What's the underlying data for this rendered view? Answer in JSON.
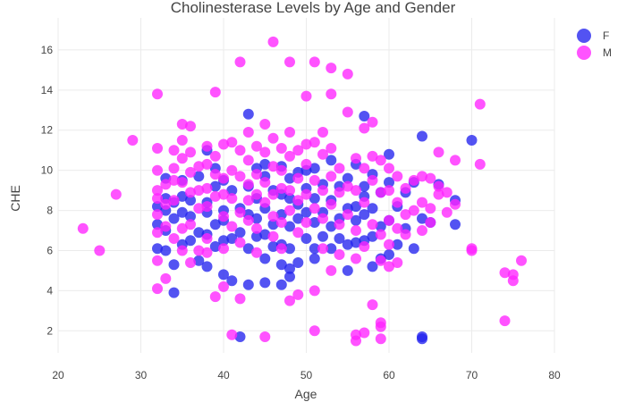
{
  "chart_data": {
    "type": "scatter",
    "title": "Cholinesterase Levels by Age and Gender",
    "xlabel": "Age",
    "ylabel": "CHE",
    "xlim": [
      20,
      80
    ],
    "ylim": [
      0.9,
      17.6
    ],
    "xticks": [
      "20",
      "30",
      "40",
      "50",
      "60",
      "70",
      "80"
    ],
    "yticks": [
      "2",
      "4",
      "6",
      "8",
      "10",
      "12",
      "14",
      "16"
    ],
    "grid": true,
    "legend": "top-right",
    "series": [
      {
        "name": "F",
        "color": "#2222ee",
        "points": [
          [
            32,
            8.2
          ],
          [
            32,
            6.1
          ],
          [
            32,
            7.3
          ],
          [
            33,
            6.0
          ],
          [
            33,
            7.0
          ],
          [
            33,
            8.0
          ],
          [
            33,
            8.6
          ],
          [
            33,
            9.6
          ],
          [
            34,
            3.9
          ],
          [
            34,
            5.3
          ],
          [
            34,
            7.6
          ],
          [
            34,
            8.4
          ],
          [
            35,
            6.3
          ],
          [
            35,
            7.9
          ],
          [
            35,
            8.7
          ],
          [
            35,
            9.5
          ],
          [
            36,
            6.5
          ],
          [
            36,
            7.7
          ],
          [
            36,
            8.5
          ],
          [
            37,
            5.5
          ],
          [
            37,
            6.9
          ],
          [
            37,
            9.7
          ],
          [
            38,
            5.2
          ],
          [
            38,
            6.8
          ],
          [
            38,
            7.9
          ],
          [
            38,
            8.4
          ],
          [
            38,
            11.0
          ],
          [
            39,
            6.2
          ],
          [
            39,
            7.3
          ],
          [
            39,
            9.2
          ],
          [
            39,
            10.1
          ],
          [
            40,
            4.8
          ],
          [
            40,
            6.5
          ],
          [
            40,
            7.5
          ],
          [
            40,
            8.0
          ],
          [
            40,
            9.5
          ],
          [
            41,
            4.5
          ],
          [
            41,
            6.6
          ],
          [
            41,
            9.0
          ],
          [
            42,
            1.7
          ],
          [
            42,
            8.1
          ],
          [
            42,
            6.9
          ],
          [
            43,
            12.8
          ],
          [
            43,
            4.3
          ],
          [
            43,
            6.1
          ],
          [
            43,
            7.8
          ],
          [
            43,
            9.2
          ],
          [
            44,
            6.7
          ],
          [
            44,
            7.6
          ],
          [
            44,
            8.6
          ],
          [
            44,
            10.1
          ],
          [
            45,
            4.4
          ],
          [
            45,
            5.6
          ],
          [
            45,
            6.8
          ],
          [
            45,
            8.1
          ],
          [
            45,
            9.7
          ],
          [
            45,
            10.3
          ],
          [
            46,
            6.2
          ],
          [
            46,
            7.3
          ],
          [
            46,
            9.0
          ],
          [
            47,
            4.3
          ],
          [
            47,
            5.3
          ],
          [
            47,
            6.3
          ],
          [
            47,
            7.8
          ],
          [
            47,
            8.8
          ],
          [
            47,
            10.2
          ],
          [
            48,
            4.7
          ],
          [
            48,
            5.1
          ],
          [
            48,
            6.1
          ],
          [
            48,
            7.2
          ],
          [
            48,
            8.6
          ],
          [
            48,
            9.6
          ],
          [
            49,
            5.4
          ],
          [
            49,
            7.6
          ],
          [
            49,
            8.3
          ],
          [
            49,
            9.9
          ],
          [
            50,
            6.6
          ],
          [
            50,
            7.9
          ],
          [
            50,
            9.1
          ],
          [
            50,
            10.0
          ],
          [
            51,
            5.6
          ],
          [
            51,
            6.1
          ],
          [
            51,
            7.4
          ],
          [
            51,
            8.6
          ],
          [
            51,
            10.1
          ],
          [
            52,
            6.7
          ],
          [
            52,
            7.9
          ],
          [
            52,
            9.3
          ],
          [
            53,
            6.1
          ],
          [
            53,
            7.2
          ],
          [
            53,
            8.5
          ],
          [
            53,
            10.5
          ],
          [
            54,
            6.6
          ],
          [
            54,
            7.6
          ],
          [
            54,
            9.2
          ],
          [
            55,
            5.0
          ],
          [
            55,
            6.3
          ],
          [
            55,
            8.1
          ],
          [
            55,
            9.6
          ],
          [
            56,
            6.4
          ],
          [
            56,
            7.5
          ],
          [
            56,
            8.2
          ],
          [
            56,
            10.3
          ],
          [
            57,
            12.7
          ],
          [
            57,
            6.5
          ],
          [
            57,
            7.8
          ],
          [
            57,
            8.7
          ],
          [
            57,
            9.2
          ],
          [
            58,
            5.2
          ],
          [
            58,
            6.7
          ],
          [
            58,
            8.1
          ],
          [
            58,
            9.8
          ],
          [
            59,
            5.6
          ],
          [
            59,
            7.2
          ],
          [
            59,
            8.9
          ],
          [
            60,
            10.8
          ],
          [
            60,
            5.8
          ],
          [
            60,
            7.5
          ],
          [
            60,
            9.4
          ],
          [
            61,
            6.3
          ],
          [
            61,
            8.2
          ],
          [
            62,
            7.1
          ],
          [
            62,
            8.9
          ],
          [
            63,
            6.1
          ],
          [
            63,
            9.4
          ],
          [
            64,
            11.7
          ],
          [
            64,
            1.6
          ],
          [
            64,
            1.7
          ],
          [
            64,
            7.6
          ],
          [
            65,
            7.4
          ],
          [
            66,
            9.3
          ],
          [
            68,
            7.3
          ],
          [
            68,
            8.5
          ],
          [
            70,
            11.5
          ]
        ]
      },
      {
        "name": "M",
        "color": "#ff22ff",
        "points": [
          [
            23,
            7.1
          ],
          [
            25,
            6.0
          ],
          [
            27,
            8.8
          ],
          [
            29,
            11.5
          ],
          [
            32,
            13.8
          ],
          [
            32,
            11.1
          ],
          [
            32,
            10.0
          ],
          [
            32,
            9.0
          ],
          [
            32,
            8.6
          ],
          [
            32,
            7.8
          ],
          [
            32,
            6.9
          ],
          [
            32,
            5.5
          ],
          [
            32,
            4.1
          ],
          [
            33,
            9.3
          ],
          [
            33,
            8.3
          ],
          [
            33,
            7.2
          ],
          [
            33,
            4.6
          ],
          [
            34,
            11.0
          ],
          [
            34,
            10.1
          ],
          [
            34,
            9.5
          ],
          [
            34,
            8.5
          ],
          [
            34,
            6.6
          ],
          [
            35,
            12.3
          ],
          [
            35,
            11.5
          ],
          [
            35,
            10.6
          ],
          [
            35,
            9.4
          ],
          [
            35,
            7.1
          ],
          [
            35,
            6.0
          ],
          [
            36,
            12.2
          ],
          [
            36,
            10.9
          ],
          [
            36,
            9.9
          ],
          [
            36,
            8.9
          ],
          [
            36,
            7.3
          ],
          [
            36,
            5.4
          ],
          [
            37,
            10.2
          ],
          [
            37,
            9.0
          ],
          [
            37,
            8.1
          ],
          [
            37,
            6.0
          ],
          [
            38,
            11.2
          ],
          [
            38,
            10.3
          ],
          [
            38,
            9.1
          ],
          [
            38,
            8.2
          ],
          [
            38,
            6.6
          ],
          [
            38,
            5.9
          ],
          [
            39,
            13.9
          ],
          [
            39,
            10.7
          ],
          [
            39,
            9.8
          ],
          [
            39,
            8.7
          ],
          [
            39,
            3.7
          ],
          [
            40,
            11.3
          ],
          [
            40,
            9.6
          ],
          [
            40,
            8.8
          ],
          [
            40,
            7.7
          ],
          [
            40,
            6.1
          ],
          [
            40,
            4.2
          ],
          [
            41,
            11.4
          ],
          [
            41,
            10.0
          ],
          [
            41,
            8.6
          ],
          [
            41,
            7.2
          ],
          [
            41,
            1.8
          ],
          [
            42,
            15.4
          ],
          [
            42,
            11.0
          ],
          [
            42,
            9.7
          ],
          [
            42,
            7.9
          ],
          [
            42,
            6.4
          ],
          [
            42,
            3.6
          ],
          [
            43,
            11.9
          ],
          [
            43,
            10.5
          ],
          [
            43,
            9.3
          ],
          [
            43,
            8.5
          ],
          [
            43,
            7.5
          ],
          [
            44,
            11.2
          ],
          [
            44,
            9.8
          ],
          [
            44,
            8.8
          ],
          [
            44,
            7.1
          ],
          [
            44,
            5.9
          ],
          [
            45,
            12.3
          ],
          [
            45,
            10.9
          ],
          [
            45,
            9.4
          ],
          [
            45,
            8.4
          ],
          [
            45,
            1.7
          ],
          [
            46,
            16.4
          ],
          [
            46,
            11.6
          ],
          [
            46,
            10.2
          ],
          [
            46,
            8.8
          ],
          [
            46,
            7.7
          ],
          [
            46,
            6.7
          ],
          [
            47,
            11.1
          ],
          [
            47,
            10.0
          ],
          [
            47,
            9.1
          ],
          [
            47,
            7.4
          ],
          [
            47,
            6.1
          ],
          [
            48,
            15.4
          ],
          [
            48,
            11.9
          ],
          [
            48,
            10.7
          ],
          [
            48,
            9.0
          ],
          [
            48,
            8.0
          ],
          [
            48,
            3.5
          ],
          [
            49,
            11.0
          ],
          [
            49,
            9.6
          ],
          [
            49,
            8.5
          ],
          [
            49,
            6.9
          ],
          [
            49,
            3.8
          ],
          [
            50,
            13.7
          ],
          [
            50,
            11.3
          ],
          [
            50,
            10.3
          ],
          [
            50,
            8.8
          ],
          [
            50,
            7.4
          ],
          [
            51,
            15.4
          ],
          [
            51,
            11.4
          ],
          [
            51,
            9.5
          ],
          [
            51,
            8.1
          ],
          [
            51,
            4.0
          ],
          [
            51,
            2.0
          ],
          [
            52,
            11.9
          ],
          [
            52,
            10.8
          ],
          [
            52,
            9.0
          ],
          [
            52,
            7.6
          ],
          [
            52,
            6.1
          ],
          [
            53,
            15.1
          ],
          [
            53,
            13.8
          ],
          [
            53,
            11.1
          ],
          [
            53,
            9.7
          ],
          [
            53,
            8.3
          ],
          [
            53,
            5.0
          ],
          [
            54,
            10.1
          ],
          [
            54,
            8.9
          ],
          [
            54,
            7.3
          ],
          [
            54,
            5.8
          ],
          [
            55,
            14.8
          ],
          [
            55,
            12.9
          ],
          [
            55,
            9.2
          ],
          [
            55,
            7.8
          ],
          [
            56,
            10.6
          ],
          [
            56,
            9.0
          ],
          [
            56,
            7.0
          ],
          [
            56,
            5.6
          ],
          [
            56,
            1.8
          ],
          [
            56,
            1.5
          ],
          [
            57,
            12.1
          ],
          [
            57,
            10.1
          ],
          [
            57,
            8.4
          ],
          [
            57,
            6.2
          ],
          [
            57,
            1.9
          ],
          [
            58,
            12.4
          ],
          [
            58,
            10.7
          ],
          [
            58,
            9.5
          ],
          [
            58,
            7.3
          ],
          [
            58,
            3.3
          ],
          [
            59,
            10.5
          ],
          [
            59,
            8.9
          ],
          [
            59,
            6.8
          ],
          [
            59,
            5.5
          ],
          [
            59,
            2.4
          ],
          [
            59,
            2.2
          ],
          [
            59,
            1.6
          ],
          [
            60,
            10.1
          ],
          [
            60,
            9.0
          ],
          [
            60,
            7.5
          ],
          [
            60,
            6.3
          ],
          [
            60,
            5.2
          ],
          [
            61,
            9.7
          ],
          [
            61,
            8.4
          ],
          [
            61,
            7.1
          ],
          [
            61,
            5.4
          ],
          [
            62,
            9.1
          ],
          [
            62,
            7.8
          ],
          [
            62,
            6.8
          ],
          [
            63,
            9.5
          ],
          [
            63,
            8.0
          ],
          [
            64,
            9.7
          ],
          [
            64,
            8.4
          ],
          [
            64,
            7.0
          ],
          [
            65,
            9.6
          ],
          [
            65,
            8.1
          ],
          [
            65,
            7.4
          ],
          [
            66,
            10.9
          ],
          [
            66,
            9.2
          ],
          [
            66,
            8.8
          ],
          [
            67,
            8.9
          ],
          [
            67,
            7.9
          ],
          [
            68,
            10.5
          ],
          [
            68,
            8.3
          ],
          [
            70,
            6.0
          ],
          [
            70,
            6.1
          ],
          [
            71,
            13.3
          ],
          [
            71,
            10.3
          ],
          [
            74,
            4.9
          ],
          [
            74,
            2.5
          ],
          [
            75,
            4.8
          ],
          [
            75,
            4.5
          ],
          [
            76,
            5.5
          ]
        ]
      }
    ]
  }
}
